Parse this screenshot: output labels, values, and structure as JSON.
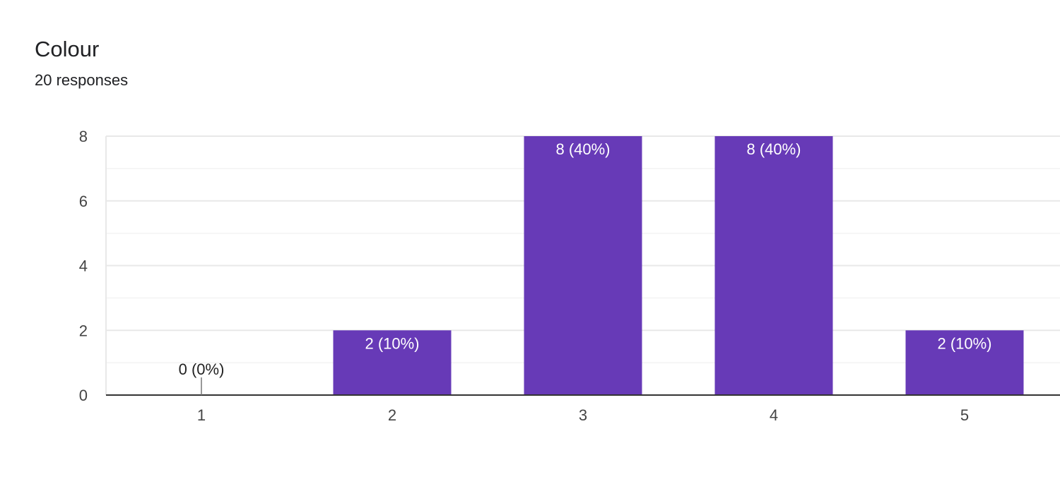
{
  "header": {
    "title": "Colour",
    "subtitle": "20 responses"
  },
  "colors": {
    "bar": "#673ab7",
    "grid_major": "#e8e8e8",
    "grid_minor": "#f3f3f3",
    "axis": "#333333",
    "label_inside": "#ffffff",
    "label_outside": "#222222"
  },
  "chart_data": {
    "type": "bar",
    "categories": [
      "1",
      "2",
      "3",
      "4",
      "5"
    ],
    "values": [
      0,
      2,
      8,
      8,
      2
    ],
    "data_labels": [
      "0 (0%)",
      "2 (10%)",
      "8 (40%)",
      "8 (40%)",
      "2 (10%)"
    ],
    "yticks": [
      0,
      2,
      4,
      6,
      8
    ],
    "ylim": [
      0,
      8
    ],
    "minor_gridlines": true,
    "xlabel": "",
    "ylabel": ""
  }
}
